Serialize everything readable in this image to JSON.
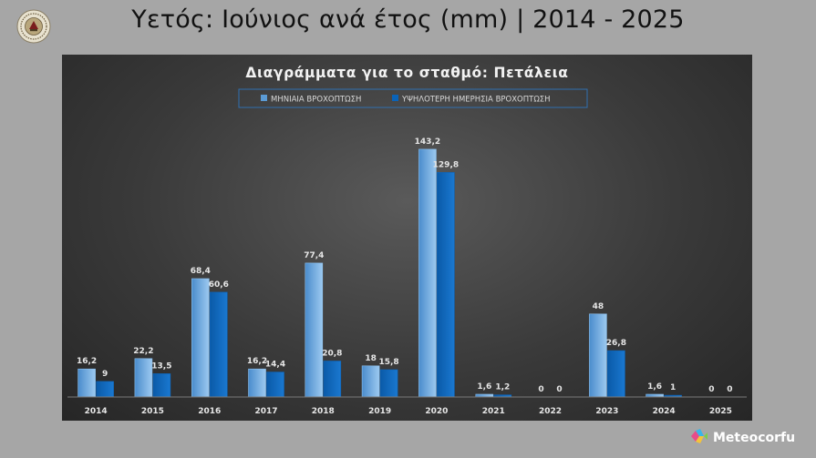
{
  "header": {
    "title": "Υετός: Ιούνιος ανά έτος (mm) | 2014 - 2025"
  },
  "brand": {
    "name": "Meteocorfu",
    "logo_icon": "emblem-seal-icon",
    "brand_icon": "colorful-diamond-icon"
  },
  "colors": {
    "background": "#a6a6a6",
    "panel": "#3a3a3a",
    "series_monthly": "#5b9bd5",
    "series_daily": "#0a63b8"
  },
  "chart_data": {
    "type": "bar",
    "title": "Διαγράμματα για το σταθμό: Πετάλεια",
    "categories": [
      "2014",
      "2015",
      "2016",
      "2017",
      "2018",
      "2019",
      "2020",
      "2021",
      "2022",
      "2023",
      "2024",
      "2025"
    ],
    "series": [
      {
        "name": "ΜΗΝΙΑΙΑ ΒΡΟΧΟΠΤΩΣΗ",
        "values": [
          16.2,
          22.2,
          68.4,
          16.2,
          77.4,
          18,
          143.2,
          1.6,
          0,
          48,
          1.6,
          0
        ],
        "labels": [
          "16,2",
          "22,2",
          "68,4",
          "16,2",
          "77,4",
          "18",
          "143,2",
          "1,6",
          "0",
          "48",
          "1,6",
          "0"
        ],
        "color": "#5b9bd5"
      },
      {
        "name": "ΥΨΗΛΟΤΕΡΗ ΗΜΕΡΗΣΙΑ ΒΡΟΧΟΠΤΩΣΗ",
        "values": [
          9,
          13.5,
          60.6,
          14.4,
          20.8,
          15.8,
          129.8,
          1.2,
          0,
          26.8,
          1,
          0
        ],
        "labels": [
          "9",
          "13,5",
          "60,6",
          "14,4",
          "20,8",
          "15,8",
          "129,8",
          "1,2",
          "0",
          "26,8",
          "1",
          "0"
        ],
        "color": "#0a63b8"
      }
    ],
    "xlabel": "",
    "ylabel": "",
    "ylim": [
      0,
      150
    ],
    "grid": false,
    "legend": "top-center"
  }
}
